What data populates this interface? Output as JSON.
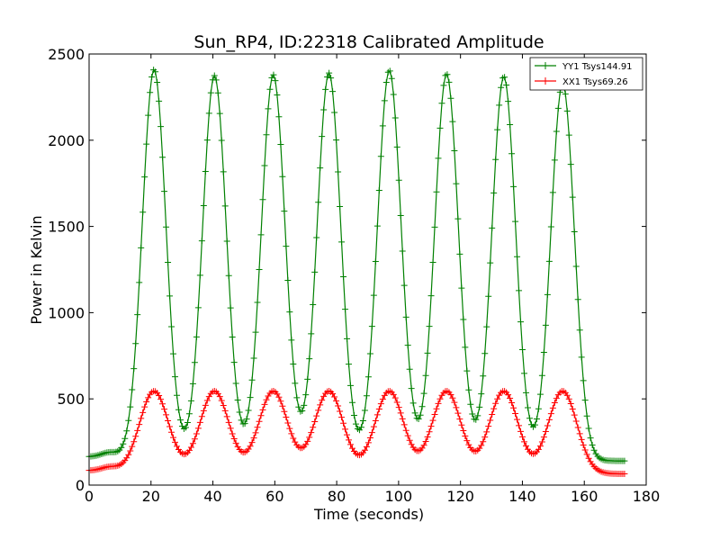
{
  "chart_data": {
    "type": "line",
    "title": "Sun_RP4, ID:22318 Calibrated Amplitude",
    "xlabel": "Time (seconds)",
    "ylabel": "Power in Kelvin",
    "xlim": [
      0,
      180
    ],
    "ylim": [
      0,
      2500
    ],
    "xticks": [
      "0",
      "20",
      "40",
      "60",
      "80",
      "100",
      "120",
      "140",
      "160",
      "180"
    ],
    "yticks": [
      "0",
      "500",
      "1000",
      "1500",
      "2000",
      "2500"
    ],
    "legend_position": "top-right",
    "grid": false,
    "marker": "+",
    "series": [
      {
        "name": "YY1 Tsys144.91",
        "color": "#008000",
        "baseline_start": 165,
        "baseline_end": 140,
        "bump": {
          "t": 6.5,
          "amplitude": 25,
          "width": 2.5
        },
        "peaks": [
          {
            "t": 21,
            "value": 2410
          },
          {
            "t": 40.5,
            "value": 2375
          },
          {
            "t": 59.5,
            "value": 2380
          },
          {
            "t": 77.5,
            "value": 2390
          },
          {
            "t": 97,
            "value": 2405
          },
          {
            "t": 115.5,
            "value": 2385
          },
          {
            "t": 134,
            "value": 2370
          },
          {
            "t": 153,
            "value": 2330
          }
        ],
        "peak_sigma": 3.8,
        "t_start": 0,
        "t_end": 173,
        "n_points": 300
      },
      {
        "name": "XX1 Tsys69.26",
        "color": "#ff0000",
        "baseline_start": 85,
        "baseline_end": 65,
        "bump": {
          "t": 6.5,
          "amplitude": 20,
          "width": 2.5
        },
        "peaks": [
          {
            "t": 21,
            "value": 545
          },
          {
            "t": 40.5,
            "value": 545
          },
          {
            "t": 59.5,
            "value": 545
          },
          {
            "t": 77.5,
            "value": 545
          },
          {
            "t": 97,
            "value": 545
          },
          {
            "t": 115.5,
            "value": 545
          },
          {
            "t": 134,
            "value": 545
          },
          {
            "t": 153,
            "value": 545
          }
        ],
        "peak_sigma": 4.6,
        "t_start": 0,
        "t_end": 173,
        "n_points": 300
      }
    ]
  }
}
